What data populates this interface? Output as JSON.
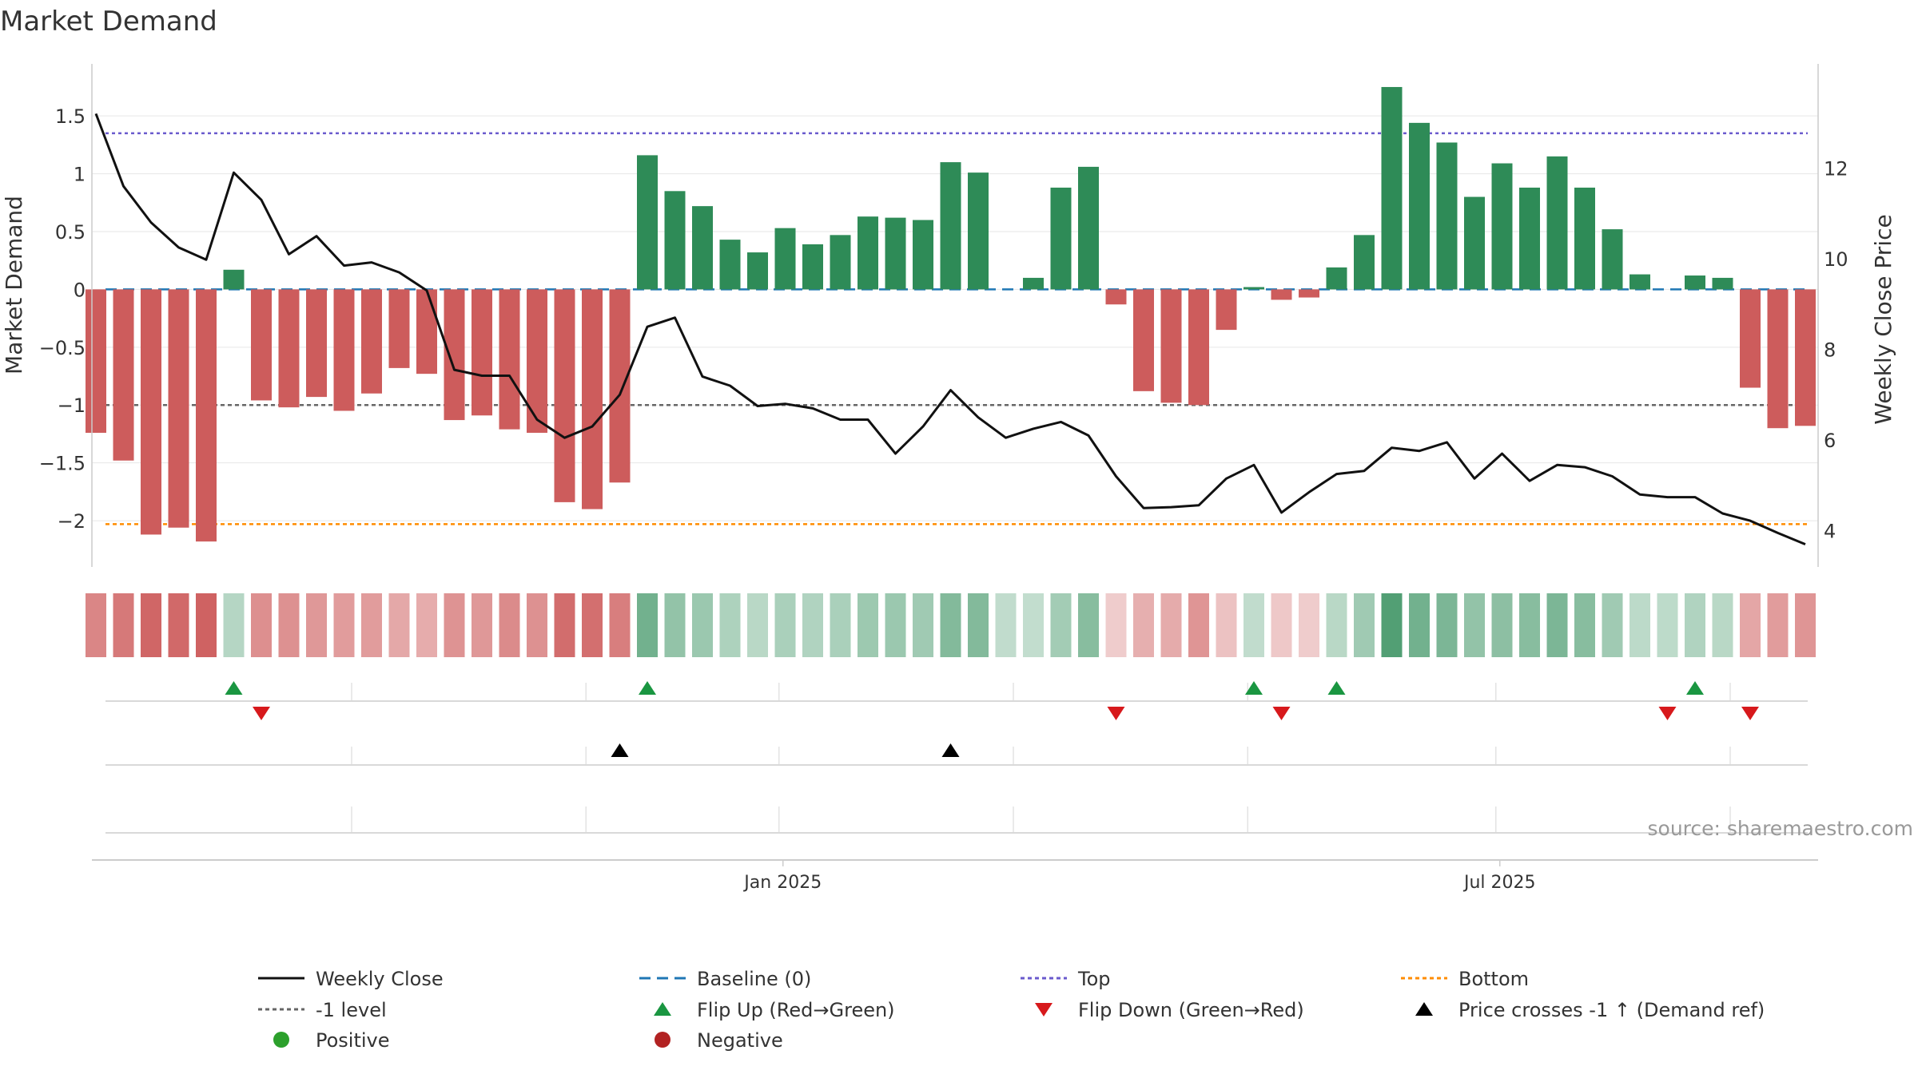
{
  "chart_data": {
    "type": "bar",
    "title": "Market Demand",
    "ylabel": "Market Demand",
    "y2label": "Weekly Close Price",
    "ylim": [
      -2.4,
      1.95
    ],
    "y2lim": [
      3.2,
      14.3
    ],
    "yticks": [
      1.5,
      1,
      0.5,
      0,
      -0.5,
      -1,
      -1.5,
      -2
    ],
    "ytick_labels": [
      "1.5",
      "1",
      "0.5",
      "0",
      "−0.5",
      "−1",
      "−1.5",
      "−2"
    ],
    "y2ticks": [
      12,
      10,
      8,
      6,
      4
    ],
    "y2tick_labels": [
      "12",
      "10",
      "8",
      "6",
      "4"
    ],
    "x_ticks": [
      {
        "index": 25.5,
        "label": "Jan 2025"
      },
      {
        "index": 51.5,
        "label": "Jul 2025"
      }
    ],
    "source_text": "source: sharemaestro.com",
    "colors": {
      "positive_bar": "#2e8b57",
      "negative_bar": "#cd5c5c",
      "close_line": "#111111",
      "baseline": "#1f77b4",
      "top": "#6a5acd",
      "bottom": "#ff8c00",
      "minus_one": "#666666",
      "flip_up": "#1a9641",
      "flip_down": "#d7191c",
      "cross": "#000000",
      "positive_dot": "#2ca02c",
      "negative_dot": "#b22222"
    },
    "levels": {
      "baseline": 0,
      "top": 1.35,
      "bottom": -2.03,
      "minus_one": -1
    },
    "series": [
      {
        "name": "Market Demand",
        "values": [
          -1.24,
          -1.48,
          -2.12,
          -2.06,
          -2.18,
          0.17,
          -0.96,
          -1.02,
          -0.93,
          -1.05,
          -0.9,
          -0.68,
          -0.73,
          -1.13,
          -1.09,
          -1.21,
          -1.24,
          -1.84,
          -1.9,
          -1.67,
          1.16,
          0.85,
          0.72,
          0.43,
          0.32,
          0.53,
          0.39,
          0.47,
          0.63,
          0.62,
          0.6,
          1.1,
          1.01,
          0.0,
          0.1,
          0.88,
          1.06,
          -0.13,
          -0.88,
          -0.98,
          -1.0,
          -0.35,
          0.02,
          -0.09,
          -0.07,
          0.19,
          0.47,
          1.75,
          1.44,
          1.27,
          0.8,
          1.09,
          0.88,
          1.15,
          0.88,
          0.52,
          0.13,
          0.0,
          0.12,
          0.1,
          -0.85,
          -1.2,
          -1.18
        ]
      },
      {
        "name": "Weekly Close",
        "values": [
          13.2,
          11.6,
          10.8,
          10.25,
          9.98,
          11.9,
          11.3,
          10.1,
          10.5,
          9.85,
          9.92,
          9.7,
          9.3,
          7.55,
          7.42,
          7.42,
          6.45,
          6.05,
          6.3,
          7.0,
          8.5,
          8.7,
          7.4,
          7.2,
          6.75,
          6.8,
          6.7,
          6.45,
          6.45,
          5.7,
          6.3,
          7.1,
          6.5,
          6.05,
          6.25,
          6.4,
          6.1,
          5.2,
          4.5,
          4.52,
          4.56,
          5.15,
          5.45,
          4.4,
          4.85,
          5.25,
          5.32,
          5.83,
          5.76,
          5.95,
          5.15,
          5.7,
          5.1,
          5.45,
          5.4,
          5.2,
          4.8,
          4.74,
          4.74,
          4.38,
          4.22,
          3.95,
          3.7
        ]
      }
    ],
    "strip_intensity": [
      0.67,
      0.77,
      0.92,
      0.9,
      0.95,
      0.17,
      0.6,
      0.58,
      0.53,
      0.5,
      0.5,
      0.4,
      0.37,
      0.57,
      0.53,
      0.63,
      0.58,
      0.87,
      0.85,
      0.73,
      0.58,
      0.38,
      0.33,
      0.22,
      0.15,
      0.24,
      0.2,
      0.24,
      0.32,
      0.33,
      0.3,
      0.48,
      0.48,
      0.1,
      0.09,
      0.28,
      0.45,
      0.12,
      0.35,
      0.38,
      0.55,
      0.2,
      0.1,
      0.15,
      0.12,
      0.15,
      0.3,
      0.78,
      0.58,
      0.52,
      0.38,
      0.42,
      0.45,
      0.52,
      0.45,
      0.3,
      0.13,
      0.12,
      0.2,
      0.15,
      0.42,
      0.5,
      0.55
    ],
    "flip_up_index": [
      5,
      20,
      42,
      45,
      58
    ],
    "flip_down_index": [
      6,
      37,
      43,
      57,
      60
    ],
    "price_cross_index": [
      19,
      31
    ],
    "legend": [
      {
        "label": "Weekly Close",
        "kind": "line-solid",
        "color": "#111111"
      },
      {
        "label": "Baseline (0)",
        "kind": "line-dashed",
        "color": "#1f77b4"
      },
      {
        "label": "Top",
        "kind": "line-dotted",
        "color": "#6a5acd"
      },
      {
        "label": "Bottom",
        "kind": "line-dotted",
        "color": "#ff8c00"
      },
      {
        "label": "-1 level",
        "kind": "line-dotted",
        "color": "#666666"
      },
      {
        "label": "Flip Up (Red→Green)",
        "kind": "tri-up",
        "color": "#1a9641"
      },
      {
        "label": "Flip Down (Green→Red)",
        "kind": "tri-down",
        "color": "#d7191c"
      },
      {
        "label": "Price crosses -1 ↑ (Demand ref)",
        "kind": "tri-up",
        "color": "#000000"
      },
      {
        "label": "Positive",
        "kind": "dot",
        "color": "#2ca02c"
      },
      {
        "label": "Negative",
        "kind": "dot",
        "color": "#b22222"
      }
    ]
  }
}
